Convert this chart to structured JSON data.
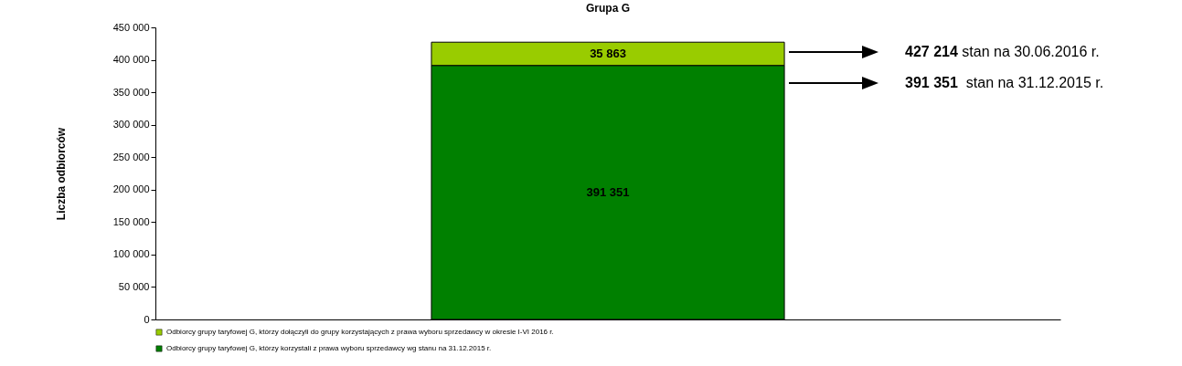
{
  "chart_data": {
    "type": "bar",
    "title": "Grupa G",
    "ylabel": "Liczba odbiorców",
    "categories": [
      null
    ],
    "stacked": true,
    "data_labels": true,
    "legend": "bottom",
    "grid": false,
    "series": [
      {
        "name": "Odbiorcy grupy taryfowej G, którzy korzystali z prawa wyboru sprzedawcy wg stanu na 31.12.2015 r.",
        "color": "#008000",
        "values": [
          391351
        ]
      },
      {
        "name": "Odbiorcy grupy taryfowej G, którzy dołączyli do grupy korzystających z  prawa wyboru sprzedawcy w okresie I-VI 2016 r.",
        "color": "#99cc00",
        "values": [
          35863
        ]
      }
    ],
    "ylim": [
      0,
      450000
    ],
    "yticks": [
      0,
      50000,
      100000,
      150000,
      200000,
      250000,
      300000,
      350000,
      400000,
      450000
    ],
    "annotations": [
      "427 214 stan na 30.06.2016 r.",
      "391 351  stan na 31.12.2015 r."
    ]
  }
}
